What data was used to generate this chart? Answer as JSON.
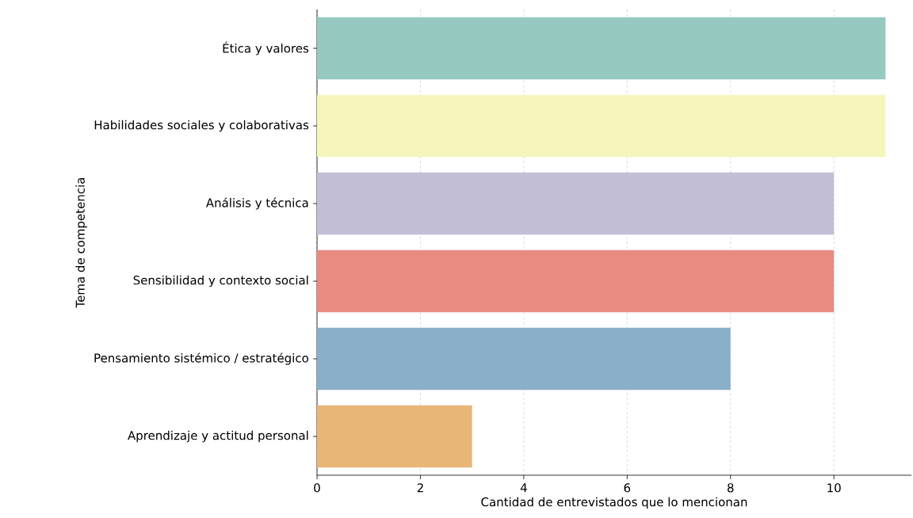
{
  "chart_data": {
    "type": "bar",
    "orientation": "horizontal",
    "xlabel": "Cantidad de entrevistados que lo mencionan",
    "ylabel": "Tema de competencia",
    "categories": [
      "Ética y valores",
      "Habilidades sociales y colaborativas",
      "Análisis y técnica",
      "Sensibilidad y contexto social",
      "Pensamiento sistémico / estratégico",
      "Aprendizaje y actitud personal"
    ],
    "values": [
      11,
      11,
      10,
      10,
      8,
      3
    ],
    "colors": [
      "#96cac1",
      "#f6f6bc",
      "#c1bed6",
      "#ea8b82",
      "#8aafc9",
      "#e8b677"
    ],
    "xlim": [
      0,
      11.5
    ],
    "xticks": [
      0,
      2,
      4,
      6,
      8,
      10
    ],
    "grid": "x"
  }
}
